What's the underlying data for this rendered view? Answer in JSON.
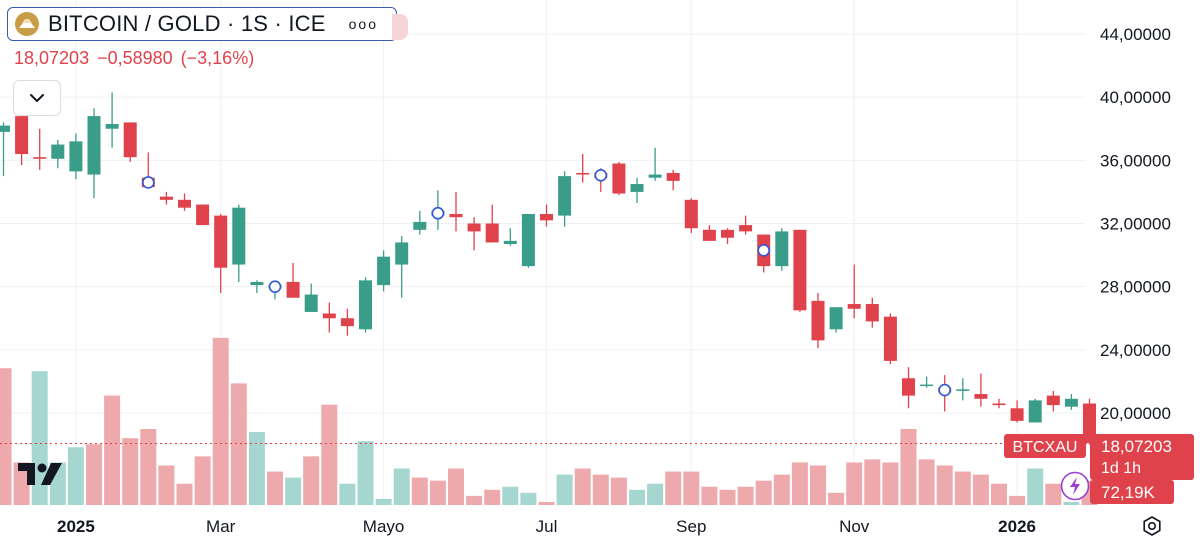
{
  "header": {
    "symbol_title": "BITCOIN / GOLD · 1S · ICE",
    "more_label": "ooo",
    "price": "18,07203",
    "change": "−0,58980",
    "change_pct": "(−3,16%)"
  },
  "colors": {
    "up": "#3a9d8a",
    "down": "#e0424b",
    "up_vol": "#a6d6d0",
    "down_vol": "#eea9ad",
    "grid": "#f0f1f4",
    "axis_text": "#131722"
  },
  "icons": {
    "collapse": "chevron-down-icon",
    "logo": "tradingview-logo-icon",
    "settings": "settings-icon",
    "flash": "flash-icon",
    "symbol": "gold-coin-icon"
  },
  "chart_data": {
    "type": "candlestick",
    "y_ticks": [
      "44,00000",
      "40,00000",
      "36,00000",
      "32,00000",
      "28,00000",
      "24,00000",
      "20,00000"
    ],
    "y_tick_values": [
      44,
      40,
      36,
      32,
      28,
      24,
      20
    ],
    "x_ticks": [
      {
        "label": "2025",
        "bold": true,
        "index": 4
      },
      {
        "label": "Mar",
        "bold": false,
        "index": 12
      },
      {
        "label": "Mayo",
        "bold": false,
        "index": 21
      },
      {
        "label": "Jul",
        "bold": false,
        "index": 30
      },
      {
        "label": "Sep",
        "bold": false,
        "index": 38
      },
      {
        "label": "Nov",
        "bold": false,
        "index": 47
      },
      {
        "label": "2026",
        "bold": true,
        "index": 56
      }
    ],
    "price_ylim": [
      16,
      45.5
    ],
    "last_price": 18.07203,
    "price_label": {
      "symbol": "BTCXAU",
      "value": "18,07203",
      "countdown": "1d 1h"
    },
    "volume_label": "72,19K",
    "dividend_markers": [
      8,
      15,
      24,
      33,
      42,
      52
    ],
    "candles": [
      [
        37.8,
        38.4,
        35.0,
        38.2
      ],
      [
        38.8,
        39.1,
        35.7,
        36.4
      ],
      [
        36.2,
        38.0,
        35.4,
        36.1
      ],
      [
        36.1,
        37.3,
        35.5,
        37.0
      ],
      [
        35.3,
        37.7,
        34.8,
        37.2
      ],
      [
        35.1,
        39.3,
        33.6,
        38.8
      ],
      [
        38.0,
        40.3,
        36.8,
        38.3
      ],
      [
        38.4,
        38.4,
        35.9,
        36.2
      ],
      [
        34.9,
        36.5,
        34.5,
        34.3
      ],
      [
        33.7,
        34.0,
        33.2,
        33.5
      ],
      [
        33.5,
        33.9,
        32.8,
        33.0
      ],
      [
        33.2,
        33.2,
        31.9,
        31.9
      ],
      [
        32.5,
        32.6,
        27.6,
        29.2
      ],
      [
        29.4,
        33.2,
        28.3,
        33.0
      ],
      [
        28.1,
        28.4,
        27.6,
        28.3
      ],
      [
        27.9,
        28.3,
        27.2,
        28.1
      ],
      [
        28.3,
        29.5,
        27.3,
        27.3
      ],
      [
        26.4,
        28.2,
        26.4,
        27.5
      ],
      [
        26.3,
        27.0,
        25.1,
        26.0
      ],
      [
        26.0,
        26.6,
        24.9,
        25.5
      ],
      [
        25.3,
        28.6,
        25.1,
        28.4
      ],
      [
        28.1,
        30.3,
        27.7,
        29.9
      ],
      [
        29.4,
        31.2,
        27.3,
        30.8
      ],
      [
        31.6,
        32.8,
        31.3,
        32.1
      ],
      [
        32.5,
        34.1,
        31.6,
        32.8
      ],
      [
        32.6,
        34.0,
        31.5,
        32.4
      ],
      [
        32.0,
        32.4,
        30.3,
        31.5
      ],
      [
        32.0,
        33.2,
        31.0,
        30.8
      ],
      [
        30.7,
        31.7,
        30.6,
        30.9
      ],
      [
        29.3,
        32.6,
        29.2,
        32.6
      ],
      [
        32.6,
        33.2,
        31.8,
        32.2
      ],
      [
        32.5,
        35.3,
        31.8,
        35.0
      ],
      [
        35.2,
        36.4,
        34.6,
        35.1
      ],
      [
        35.2,
        35.5,
        34.0,
        34.9
      ],
      [
        35.8,
        35.9,
        33.8,
        33.9
      ],
      [
        34.0,
        34.9,
        33.3,
        34.5
      ],
      [
        34.9,
        36.8,
        34.7,
        35.1
      ],
      [
        35.2,
        35.4,
        34.1,
        34.7
      ],
      [
        33.5,
        33.6,
        31.4,
        31.7
      ],
      [
        31.6,
        31.9,
        30.9,
        30.9
      ],
      [
        31.6,
        31.7,
        30.7,
        31.1
      ],
      [
        31.9,
        32.5,
        31.3,
        31.5
      ],
      [
        31.3,
        31.3,
        28.9,
        29.3
      ],
      [
        29.3,
        31.7,
        29.0,
        31.5
      ],
      [
        31.6,
        31.6,
        26.4,
        26.5
      ],
      [
        27.1,
        27.6,
        24.1,
        24.6
      ],
      [
        25.3,
        26.6,
        25.1,
        26.7
      ],
      [
        26.9,
        29.4,
        26.0,
        26.6
      ],
      [
        26.9,
        27.3,
        25.4,
        25.8
      ],
      [
        26.1,
        26.3,
        23.1,
        23.3
      ],
      [
        22.2,
        22.9,
        20.3,
        21.1
      ],
      [
        21.8,
        22.3,
        21.6,
        21.8
      ],
      [
        21.6,
        22.4,
        20.1,
        21.3
      ],
      [
        21.4,
        22.2,
        20.8,
        21.5
      ],
      [
        21.2,
        22.5,
        20.4,
        20.9
      ],
      [
        20.6,
        20.9,
        20.3,
        20.5
      ],
      [
        20.3,
        20.8,
        19.4,
        19.5
      ],
      [
        19.4,
        20.9,
        19.4,
        20.8
      ],
      [
        21.1,
        21.4,
        20.1,
        20.5
      ],
      [
        20.4,
        21.2,
        20.2,
        20.9
      ],
      [
        20.6,
        20.9,
        18.0,
        18.1
      ]
    ],
    "volumes": [
      21.3,
      18.2,
      21.2,
      18.2,
      18.7,
      18.8,
      20.4,
      19.0,
      19.3,
      18.1,
      17.5,
      18.4,
      22.3,
      20.8,
      19.2,
      17.9,
      17.7,
      18.4,
      20.1,
      17.5,
      18.9,
      17.0,
      18.0,
      17.7,
      17.6,
      18.0,
      17.1,
      17.3,
      17.4,
      17.2,
      16.9,
      17.8,
      18.0,
      17.8,
      17.7,
      17.3,
      17.5,
      17.9,
      17.9,
      17.4,
      17.3,
      17.4,
      17.6,
      17.8,
      18.2,
      18.1,
      17.2,
      18.2,
      18.3,
      18.2,
      19.3,
      18.3,
      18.1,
      17.9,
      17.8,
      17.5,
      17.1,
      18.0,
      17.5,
      16.9,
      17.6
    ],
    "volume_colors": [
      "d",
      "d",
      "u",
      "u",
      "u",
      "d",
      "d",
      "d",
      "d",
      "d",
      "d",
      "d",
      "d",
      "d",
      "u",
      "d",
      "u",
      "d",
      "d",
      "u",
      "u",
      "u",
      "u",
      "d",
      "d",
      "d",
      "d",
      "d",
      "u",
      "u",
      "d",
      "u",
      "d",
      "d",
      "d",
      "u",
      "u",
      "d",
      "d",
      "d",
      "d",
      "d",
      "d",
      "d",
      "d",
      "d",
      "d",
      "d",
      "d",
      "d",
      "d",
      "d",
      "d",
      "d",
      "d",
      "d",
      "d",
      "u",
      "d",
      "u",
      "d"
    ]
  }
}
